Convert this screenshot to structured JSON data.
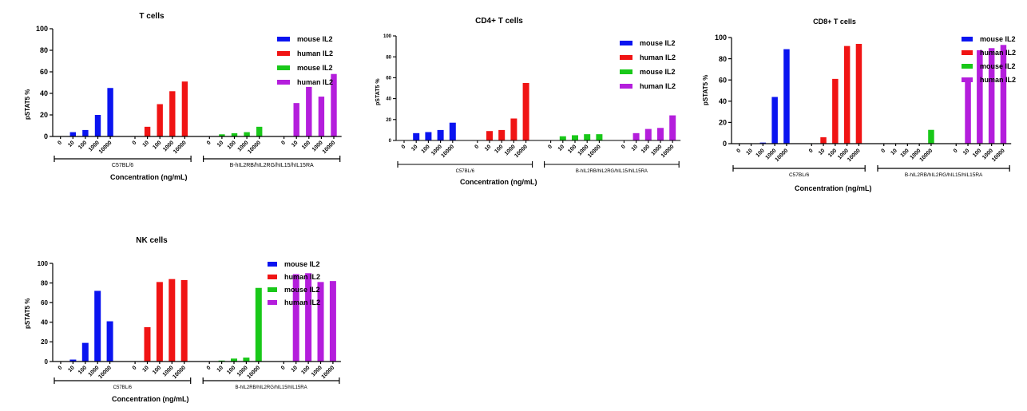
{
  "legend_entries": [
    {
      "label": "mouse IL2",
      "color": "#0a14f0"
    },
    {
      "label": "human IL2",
      "color": "#f01414"
    },
    {
      "label": "mouse IL2",
      "color": "#19c819"
    },
    {
      "label": "human IL2",
      "color": "#b41edc"
    }
  ],
  "chart_data": [
    {
      "type": "bar",
      "title": "T cells",
      "ylabel": "pSTAT5 %",
      "xlabel": "Concentration (ng/mL)",
      "ylim": [
        0,
        100
      ],
      "yticks": [
        "0",
        "20",
        "40",
        "60",
        "80",
        "100"
      ],
      "categories": [
        "0",
        "10",
        "100",
        "1000",
        "10000"
      ],
      "groups": [
        "C57BL/6",
        "B-hIL2RB/hIL2RG/hIL15/hIL15RA"
      ],
      "series": [
        {
          "name": "mouse IL2",
          "group": "C57BL/6",
          "color": "#0a14f0",
          "values": [
            0,
            4,
            6,
            20,
            45
          ]
        },
        {
          "name": "human IL2",
          "group": "C57BL/6",
          "color": "#f01414",
          "values": [
            0,
            9,
            30,
            42,
            51
          ]
        },
        {
          "name": "mouse IL2",
          "group": "B-hIL2RB/hIL2RG/hIL15/hIL15RA",
          "color": "#19c819",
          "values": [
            0,
            2,
            3,
            4,
            9
          ]
        },
        {
          "name": "human IL2",
          "group": "B-hIL2RB/hIL2RG/hIL15/hIL15RA",
          "color": "#b41edc",
          "values": [
            0,
            31,
            46,
            37,
            58
          ]
        }
      ]
    },
    {
      "type": "bar",
      "title": "CD4+ T cells",
      "ylabel": "pSTAT5 %",
      "xlabel": "Concentration (ng/mL)",
      "ylim": [
        0,
        100
      ],
      "yticks": [
        "0",
        "20",
        "40",
        "60",
        "80",
        "100"
      ],
      "categories": [
        "0",
        "10",
        "100",
        "1000",
        "10000"
      ],
      "groups": [
        "C57BL/6",
        "B-hIL2RB/hIL2RG/hIL15/hIL15RA"
      ],
      "series": [
        {
          "name": "mouse IL2",
          "group": "C57BL/6",
          "color": "#0a14f0",
          "values": [
            0,
            7,
            8,
            10,
            17
          ]
        },
        {
          "name": "human IL2",
          "group": "C57BL/6",
          "color": "#f01414",
          "values": [
            0,
            9,
            10,
            21,
            55
          ]
        },
        {
          "name": "mouse IL2",
          "group": "B-hIL2RB/hIL2RG/hIL15/hIL15RA",
          "color": "#19c819",
          "values": [
            0,
            4,
            5,
            6,
            6
          ]
        },
        {
          "name": "human IL2",
          "group": "B-hIL2RB/hIL2RG/hIL15/hIL15RA",
          "color": "#b41edc",
          "values": [
            0,
            7,
            11,
            12,
            24
          ]
        }
      ]
    },
    {
      "type": "bar",
      "title": "CD8+ T cells",
      "ylabel": "pSTAT5 %",
      "xlabel": "Concentration (ng/mL)",
      "ylim": [
        0,
        100
      ],
      "yticks": [
        "0",
        "20",
        "40",
        "60",
        "80",
        "100"
      ],
      "categories": [
        "0",
        "10",
        "100",
        "1000",
        "10000"
      ],
      "groups": [
        "C57BL/6",
        "B-hIL2RB/hIL2RG/hIL15/hIL15RA"
      ],
      "series": [
        {
          "name": "mouse IL2",
          "group": "C57BL/6",
          "color": "#0a14f0",
          "values": [
            0,
            0,
            1,
            44,
            89
          ]
        },
        {
          "name": "human IL2",
          "group": "C57BL/6",
          "color": "#f01414",
          "values": [
            0,
            6,
            61,
            92,
            94
          ]
        },
        {
          "name": "mouse IL2",
          "group": "B-hIL2RB/hIL2RG/hIL15/hIL15RA",
          "color": "#19c819",
          "values": [
            0,
            0,
            0,
            0,
            13
          ]
        },
        {
          "name": "human IL2",
          "group": "B-hIL2RB/hIL2RG/hIL15/hIL15RA",
          "color": "#b41edc",
          "values": [
            0,
            59,
            88,
            90,
            93
          ]
        }
      ]
    },
    {
      "type": "bar",
      "title": "NK cells",
      "ylabel": "pSTAT5 %",
      "xlabel": "Concentration (ng/mL)",
      "ylim": [
        0,
        100
      ],
      "yticks": [
        "0",
        "20",
        "40",
        "60",
        "80",
        "100"
      ],
      "categories": [
        "0",
        "10",
        "100",
        "1000",
        "10000"
      ],
      "groups": [
        "C57BL/6",
        "B-hIL2RB/hIL2RG/hIL15/hIL15RA"
      ],
      "series": [
        {
          "name": "mouse IL2",
          "group": "C57BL/6",
          "color": "#0a14f0",
          "values": [
            0,
            2,
            19,
            72,
            41
          ]
        },
        {
          "name": "human IL2",
          "group": "C57BL/6",
          "color": "#f01414",
          "values": [
            0,
            35,
            81,
            84,
            83
          ]
        },
        {
          "name": "mouse IL2",
          "group": "B-hIL2RB/hIL2RG/hIL15/hIL15RA",
          "color": "#19c819",
          "values": [
            0,
            1,
            3,
            4,
            75
          ]
        },
        {
          "name": "human IL2",
          "group": "B-hIL2RB/hIL2RG/hIL15/hIL15RA",
          "color": "#b41edc",
          "values": [
            0,
            89,
            90,
            81,
            82
          ]
        }
      ]
    }
  ]
}
